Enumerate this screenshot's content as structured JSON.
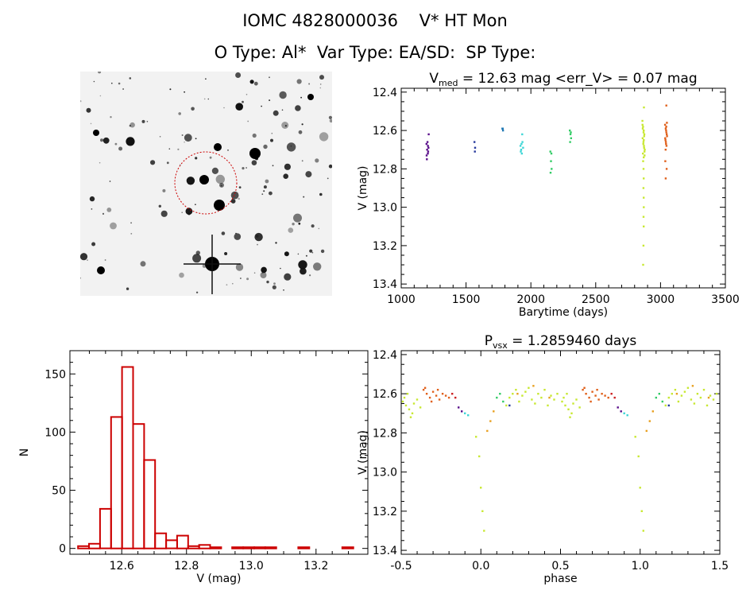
{
  "header": {
    "title_line1": "IOMC 4828000036    V* HT Mon",
    "title_line2": "O Type: Al*  Var Type: EA/SD:  SP Type:"
  },
  "finder": {
    "top_label": "",
    "mid_label": "",
    "bottom_label": ""
  },
  "colors": {
    "histogram": "#cc0000",
    "circle": "#cc0000",
    "groups": [
      "#5a0f8a",
      "#283a9c",
      "#1f78b4",
      "#3fd6d6",
      "#33cc66",
      "#c8e832",
      "#e8a020",
      "#e0601c",
      "#cc2222"
    ]
  },
  "chart_data": [
    {
      "type": "scatter",
      "name": "light-curve",
      "title": "V_med = 12.63 mag <err_V> = 0.07 mag",
      "title_main": "V",
      "title_sub": "med",
      "title_rest": " = 12.63 mag <err_V> = 0.07 mag",
      "xlabel": "Barytime (days)",
      "ylabel": "V (mag)",
      "xlim": [
        1000,
        3500
      ],
      "ylim": [
        13.42,
        12.38
      ],
      "y_inverted": true,
      "xticks": [
        1000,
        1500,
        2000,
        2500,
        3000,
        3500
      ],
      "yticks": [
        12.4,
        12.6,
        12.8,
        13.0,
        13.2,
        13.4
      ],
      "groups": [
        {
          "x": [
            1195,
            1200,
            1205,
            1210,
            1198,
            1203,
            1208,
            1212,
            1196,
            1206
          ],
          "y": [
            12.67,
            12.7,
            12.72,
            12.69,
            12.75,
            12.66,
            12.71,
            12.62,
            12.73,
            12.68
          ],
          "color_index": 0
        },
        {
          "x": [
            1565,
            1570,
            1568
          ],
          "y": [
            12.66,
            12.69,
            12.71
          ],
          "color_index": 1
        },
        {
          "x": [
            1780,
            1785,
            1783
          ],
          "y": [
            12.59,
            12.6,
            12.59
          ],
          "color_index": 2
        },
        {
          "x": [
            1920,
            1925,
            1930,
            1935,
            1922,
            1928,
            1933,
            1940
          ],
          "y": [
            12.68,
            12.7,
            12.72,
            12.66,
            12.71,
            12.67,
            12.62,
            12.69
          ],
          "color_index": 3
        },
        {
          "x": [
            2150,
            2155,
            2160,
            2152,
            2158
          ],
          "y": [
            12.71,
            12.76,
            12.8,
            12.82,
            12.72
          ],
          "color_index": 4
        },
        {
          "x": [
            2300,
            2305,
            2310,
            2303,
            2308
          ],
          "y": [
            12.6,
            12.62,
            12.64,
            12.66,
            12.61
          ],
          "color_index": 4
        },
        {
          "x": [
            2860,
            2865,
            2870,
            2875,
            2862,
            2868,
            2872,
            2878,
            2864,
            2870,
            2866,
            2874,
            2869,
            2871,
            2867,
            2873,
            2861,
            2876,
            2863,
            2877,
            2869,
            2870,
            2868,
            2870,
            2871,
            2869,
            2870,
            2868,
            2866,
            2872
          ],
          "y": [
            12.55,
            12.58,
            12.6,
            12.62,
            12.64,
            12.66,
            12.68,
            12.7,
            12.72,
            12.74,
            12.76,
            12.63,
            12.61,
            12.65,
            12.67,
            12.69,
            12.57,
            12.71,
            12.59,
            12.73,
            12.8,
            12.85,
            12.9,
            12.95,
            13.0,
            13.05,
            13.1,
            13.2,
            13.3,
            12.48
          ],
          "color_index": 5
        },
        {
          "x": [
            3035,
            3040,
            3045,
            3050,
            3038,
            3043,
            3048,
            3036,
            3041,
            3046,
            3039,
            3044,
            3049,
            3042,
            3037,
            3047,
            3040,
            3045
          ],
          "y": [
            12.57,
            12.59,
            12.61,
            12.63,
            12.65,
            12.6,
            12.62,
            12.64,
            12.66,
            12.68,
            12.7,
            12.58,
            12.56,
            12.67,
            12.76,
            12.8,
            12.85,
            12.47
          ],
          "color_index": 7
        }
      ]
    },
    {
      "type": "bar",
      "name": "histogram",
      "title": "",
      "xlabel": "V (mag)",
      "ylabel": "N",
      "xlim": [
        12.44,
        13.36
      ],
      "ylim": [
        -5,
        170
      ],
      "xticks": [
        12.6,
        12.8,
        13.0,
        13.2
      ],
      "xtick_labels": [
        "12.6",
        "12.8",
        "13.0",
        "13.2"
      ],
      "yticks": [
        0,
        50,
        100,
        150
      ],
      "bin_width": 0.034,
      "bin_left": [
        12.465,
        12.499,
        12.533,
        12.567,
        12.601,
        12.635,
        12.669,
        12.703,
        12.737,
        12.771,
        12.805,
        12.839,
        12.873,
        12.907,
        12.941,
        12.975,
        13.009,
        13.043,
        13.077,
        13.111,
        13.145,
        13.179,
        13.213,
        13.247,
        13.281
      ],
      "values": [
        2,
        4,
        34,
        113,
        156,
        107,
        76,
        13,
        7,
        11,
        2,
        3,
        1,
        0,
        1,
        1,
        1,
        1,
        0,
        0,
        1,
        0,
        0,
        0,
        1
      ]
    },
    {
      "type": "scatter",
      "name": "phased-light-curve",
      "title": "P_vsx = 1.2859460 days",
      "title_main": "P",
      "title_sub": "vsx",
      "title_rest": " = 1.2859460 days",
      "xlabel": "phase",
      "ylabel": "V (mag)",
      "xlim": [
        -0.5,
        1.5
      ],
      "ylim": [
        13.42,
        12.38
      ],
      "y_inverted": true,
      "xticks": [
        -0.5,
        0.0,
        0.5,
        1.0,
        1.5
      ],
      "xtick_labels": [
        "-0.5",
        "0.0",
        "0.5",
        "1.0",
        "1.5"
      ],
      "yticks": [
        12.4,
        12.6,
        12.8,
        13.0,
        13.2,
        13.4
      ],
      "groups": [
        {
          "x": [
            -0.49,
            -0.47,
            -0.45,
            -0.43,
            -0.48,
            -0.44,
            -0.46,
            -0.42,
            -0.4,
            -0.38,
            0.51,
            0.53,
            0.55,
            0.57,
            0.52,
            0.56,
            0.54,
            0.58,
            0.6,
            0.62
          ],
          "y": [
            12.64,
            12.66,
            12.68,
            12.7,
            12.62,
            12.72,
            12.6,
            12.65,
            12.63,
            12.67,
            12.64,
            12.66,
            12.68,
            12.7,
            12.62,
            12.72,
            12.6,
            12.65,
            12.63,
            12.67
          ],
          "color_index": 5
        },
        {
          "x": [
            -0.36,
            -0.34,
            -0.32,
            -0.3,
            -0.28,
            -0.26,
            -0.24,
            -0.35,
            -0.31,
            -0.27,
            -0.22,
            -0.2,
            0.64,
            0.66,
            0.68,
            0.7,
            0.72,
            0.74,
            0.76,
            0.65,
            0.69,
            0.73,
            0.78,
            0.8
          ],
          "y": [
            12.58,
            12.6,
            12.62,
            12.59,
            12.61,
            12.63,
            12.6,
            12.57,
            12.64,
            12.58,
            12.61,
            12.62,
            12.58,
            12.6,
            12.62,
            12.59,
            12.61,
            12.63,
            12.6,
            12.57,
            12.64,
            12.58,
            12.61,
            12.62
          ],
          "color_index": 7
        },
        {
          "x": [
            -0.18,
            -0.16,
            0.82,
            0.84
          ],
          "y": [
            12.6,
            12.62,
            12.6,
            12.62
          ],
          "color_index": 8
        },
        {
          "x": [
            -0.14,
            -0.12,
            0.86,
            0.88
          ],
          "y": [
            12.67,
            12.69,
            12.67,
            12.69
          ],
          "color_index": 0
        },
        {
          "x": [
            -0.1,
            -0.08,
            0.9,
            0.92
          ],
          "y": [
            12.7,
            12.71,
            12.7,
            12.71
          ],
          "color_index": 3
        },
        {
          "x": [
            -0.03,
            -0.01,
            0.0,
            0.01,
            0.02,
            0.97,
            0.99,
            1.0,
            1.01,
            1.02
          ],
          "y": [
            12.82,
            12.92,
            13.08,
            13.2,
            13.3,
            12.82,
            12.92,
            13.08,
            13.2,
            13.3
          ],
          "color_index": 5
        },
        {
          "x": [
            0.04,
            0.06,
            0.08,
            1.04,
            1.06,
            1.08
          ],
          "y": [
            12.79,
            12.74,
            12.69,
            12.79,
            12.74,
            12.69
          ],
          "color_index": 6
        },
        {
          "x": [
            0.1,
            0.12,
            0.14,
            1.1,
            1.12,
            1.14
          ],
          "y": [
            12.62,
            12.6,
            12.64,
            12.62,
            12.6,
            12.64
          ],
          "color_index": 4
        },
        {
          "x": [
            0.16,
            0.18,
            0.2,
            0.22,
            0.24,
            0.26,
            0.28,
            0.3,
            0.32,
            0.34,
            0.36,
            0.38,
            0.4,
            0.42,
            0.44,
            0.46,
            0.48,
            1.16,
            1.18,
            1.2,
            1.22,
            1.24,
            1.26,
            1.28,
            1.3,
            1.32,
            1.34,
            1.36,
            1.38,
            1.4,
            1.42,
            1.44,
            1.46,
            1.48
          ],
          "y": [
            12.66,
            12.62,
            12.6,
            12.58,
            12.64,
            12.61,
            12.59,
            12.57,
            12.63,
            12.65,
            12.6,
            12.62,
            12.58,
            12.66,
            12.61,
            12.63,
            12.6,
            12.66,
            12.62,
            12.6,
            12.58,
            12.64,
            12.61,
            12.59,
            12.57,
            12.63,
            12.65,
            12.6,
            12.62,
            12.58,
            12.66,
            12.61,
            12.63,
            12.6
          ],
          "color_index": 5
        },
        {
          "x": [
            0.23,
            0.33,
            0.43,
            1.23,
            1.33,
            1.43
          ],
          "y": [
            12.6,
            12.56,
            12.62,
            12.6,
            12.56,
            12.62
          ],
          "color_index": 6
        },
        {
          "x": [
            0.18,
            1.18
          ],
          "y": [
            12.66,
            12.66
          ],
          "color_index": 1
        }
      ]
    }
  ]
}
